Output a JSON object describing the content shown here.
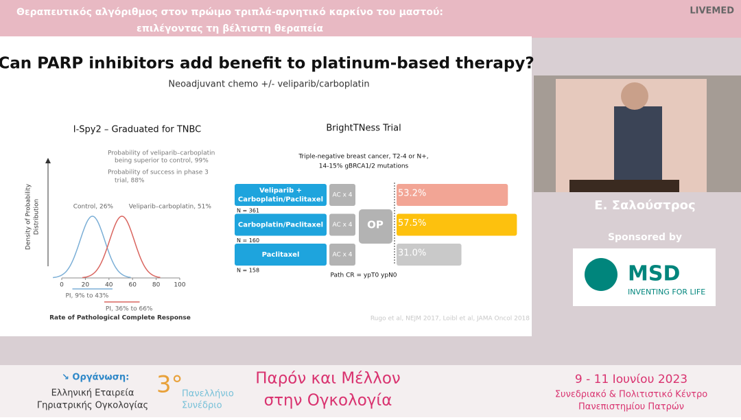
{
  "header": {
    "title_lines": [
      "Θεραπευτικός αλγόριθμος στον πρώιμο τριπλά-αρνητικό καρκίνο του μαστού:",
      "επιλέγοντας τη βέλτιστη θεραπεία"
    ],
    "logo": "LIVEMED"
  },
  "slide": {
    "title": "Can PARP inhibitors add benefit to platinum-based therapy?",
    "subtitle": "Neoadjuvant chemo +/- veliparib/carboplatin",
    "left": {
      "title": "I-Spy2 – Graduated for TNBC",
      "annotations": [
        "Probability of veliparib–carboplatin",
        "being superior to control, 99%",
        "Probability of success in phase 3",
        "trial, 88%"
      ],
      "y_label_lines": [
        "Density of Probability",
        "Distribution"
      ],
      "curves": [
        {
          "label": "Control, 26%",
          "mean": 26,
          "color": "#7aaed6",
          "interval_label": "PI, 9% to 43%",
          "interval": [
            9,
            43
          ]
        },
        {
          "label": "Veliparib–carboplatin, 51%",
          "mean": 51,
          "color": "#d9645e",
          "interval_label": "PI, 36% to 66%",
          "interval": [
            36,
            66
          ]
        }
      ],
      "xlim": [
        0,
        100
      ],
      "xticks": [
        0,
        20,
        40,
        60,
        80,
        100
      ],
      "x_label": "Rate of Pathological Complete Response"
    },
    "right": {
      "title": "BrightTNess Trial",
      "description_lines": [
        "Triple-negative breast cancer, T2-4 or N+,",
        "14-15% gBRCA1/2 mutations"
      ],
      "arms": [
        {
          "name_lines": [
            "Veliparib +",
            "Carboplatin/Paclitaxel"
          ],
          "n": "N = 361",
          "ac": "AC x 4",
          "value": 53.2,
          "value_label": "53.2%",
          "color": "#f2a595"
        },
        {
          "name_lines": [
            "Carboplatin/Paclitaxel"
          ],
          "n": "N = 160",
          "ac": "AC x 4",
          "value": 57.5,
          "value_label": "57.5%",
          "color": "#fdc10e"
        },
        {
          "name_lines": [
            "Paclitaxel"
          ],
          "n": "N = 158",
          "ac": "AC x 4",
          "value": 31.0,
          "value_label": "31.0%",
          "color": "#c9c9c9"
        }
      ],
      "op": "OP",
      "footnote": "Path CR = ypT0 ypN0"
    },
    "reference": "Rugo et al, NEJM 2017, Loibl et al, JAMA Oncol 2018"
  },
  "speaker": {
    "name": "Ε. Σαλούστρος"
  },
  "sponsor": {
    "label": "Sponsored by",
    "brand": "MSD",
    "tagline": "INVENTING FOR LIFE"
  },
  "footer": {
    "organizer_label": "↘ Οργάνωση:",
    "organizer_lines": [
      "Ελληνική Εταιρεία",
      "Γηριατρικής Ογκολογίας"
    ],
    "congress_number": "3°",
    "congress_lines": [
      "Πανελλήνιο",
      "Συνέδριο"
    ],
    "theme_lines": [
      "Παρόν και Μέλλον",
      "στην Ογκολογία"
    ],
    "dates": "9 - 11 Ιουνίου 2023",
    "venue_lines": [
      "Συνεδριακό & Πολιτιστικό Κέντρο",
      "Πανεπιστημίου Πατρών"
    ]
  }
}
